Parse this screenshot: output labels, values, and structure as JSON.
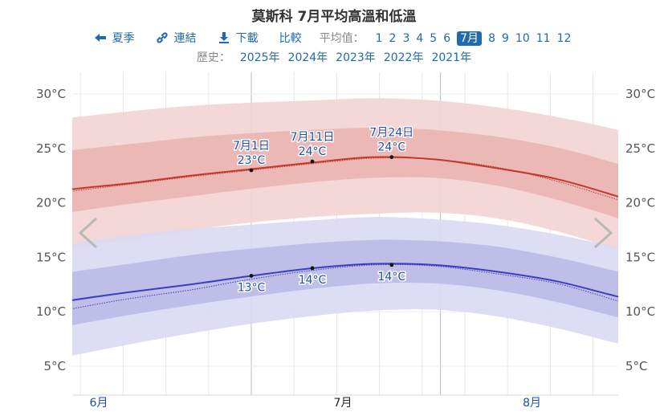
{
  "title": "莫斯科 7月平均高溫和低溫",
  "nav": {
    "summer": "夏季",
    "link": "連結",
    "download": "下載",
    "compare": "比較",
    "avg_label": "平均值：",
    "months": [
      "1",
      "2",
      "3",
      "4",
      "5",
      "6",
      "7月",
      "8",
      "9",
      "10",
      "11",
      "12"
    ],
    "active_month": "7月"
  },
  "history": {
    "label": "歷史：",
    "years": [
      "2025年",
      "2024年",
      "2023年",
      "2022年",
      "2021年"
    ]
  },
  "colors": {
    "high_line": "#c0392b",
    "high_band_inner": "#e8aeab",
    "high_band_outer": "#f3d4d3",
    "low_line": "#3b3fbf",
    "low_band_inner": "#b4b3e6",
    "low_band_outer": "#d9d9f3",
    "month_label": "#1f4fa3"
  },
  "chart_data": {
    "type": "area",
    "title": "莫斯科 7月平均高溫和低溫",
    "y_unit": "°C",
    "ylim": [
      3,
      32
    ],
    "yticks": [
      "30°C",
      "25°C",
      "20°C",
      "15°C",
      "10°C",
      "5°C"
    ],
    "ytick_values": [
      30,
      25,
      20,
      15,
      10,
      5
    ],
    "x_month_labels": [
      {
        "label": "6月",
        "day": -25
      },
      {
        "label": "7月",
        "day": 15
      },
      {
        "label": "8月",
        "day": 46
      }
    ],
    "x_month_boundaries": [
      -30,
      0,
      31,
      62
    ],
    "x_day_range": [
      -40,
      71
    ],
    "grid": true,
    "series": [
      {
        "key": "high",
        "x": [
          -40,
          -30,
          -20,
          -10,
          0,
          10,
          20,
          30,
          40,
          50,
          60,
          71
        ],
        "mean": [
          20.3,
          21.2,
          21.8,
          22.5,
          23.1,
          23.7,
          24.2,
          24.0,
          23.2,
          22.2,
          20.6,
          18.6
        ],
        "recent": [
          20.0,
          21.0,
          21.7,
          22.4,
          23.0,
          23.6,
          24.1,
          24.0,
          23.3,
          22.0,
          20.3,
          18.5
        ],
        "p25": [
          18.2,
          19.1,
          19.9,
          20.6,
          21.3,
          21.9,
          22.3,
          22.3,
          21.6,
          20.3,
          18.6,
          16.5
        ],
        "p75": [
          24.2,
          24.8,
          25.4,
          26.0,
          26.4,
          26.7,
          26.9,
          26.7,
          26.1,
          25.1,
          23.6,
          21.7
        ],
        "p10": [
          15.0,
          15.8,
          16.6,
          17.5,
          18.2,
          18.7,
          19.0,
          19.1,
          18.6,
          17.4,
          15.7,
          13.6
        ],
        "p90": [
          27.2,
          27.8,
          28.4,
          28.9,
          29.2,
          29.4,
          29.6,
          29.4,
          28.8,
          27.9,
          26.7,
          25.0
        ]
      },
      {
        "key": "low",
        "x": [
          -40,
          -30,
          -20,
          -10,
          0,
          10,
          20,
          30,
          40,
          50,
          60,
          71
        ],
        "mean": [
          10.0,
          11.0,
          11.8,
          12.5,
          13.3,
          14.0,
          14.4,
          14.3,
          13.7,
          12.8,
          11.4,
          9.9
        ],
        "recent": [
          9.0,
          10.2,
          11.2,
          12.0,
          13.0,
          13.8,
          14.3,
          14.2,
          13.5,
          12.6,
          11.0,
          9.0
        ],
        "p25": [
          7.6,
          8.7,
          9.7,
          10.6,
          11.4,
          12.1,
          12.6,
          12.6,
          12.0,
          10.9,
          9.5,
          7.9
        ],
        "p75": [
          12.6,
          13.6,
          14.4,
          15.2,
          15.8,
          16.3,
          16.6,
          16.5,
          16.0,
          15.0,
          13.7,
          12.3
        ],
        "p10": [
          4.8,
          5.9,
          7.0,
          8.0,
          8.9,
          9.6,
          10.1,
          10.2,
          9.6,
          8.5,
          7.1,
          5.7
        ],
        "p90": [
          15.2,
          16.2,
          17.0,
          17.6,
          18.0,
          18.4,
          18.7,
          18.5,
          18.0,
          17.1,
          15.9,
          14.6
        ]
      }
    ],
    "annotations": [
      {
        "series": "high",
        "day": 0,
        "value": 23.0,
        "date": "7月1日",
        "text": "23°C"
      },
      {
        "series": "high",
        "day": 10,
        "value": 23.8,
        "date": "7月11日",
        "text": "24°C"
      },
      {
        "series": "high",
        "day": 23,
        "value": 24.2,
        "date": "7月24日",
        "text": "24°C"
      },
      {
        "series": "low",
        "day": 0,
        "value": 13.3,
        "date": "",
        "text": "13°C"
      },
      {
        "series": "low",
        "day": 10,
        "value": 14.0,
        "date": "",
        "text": "14°C"
      },
      {
        "series": "low",
        "day": 23,
        "value": 14.3,
        "date": "",
        "text": "14°C"
      }
    ]
  }
}
